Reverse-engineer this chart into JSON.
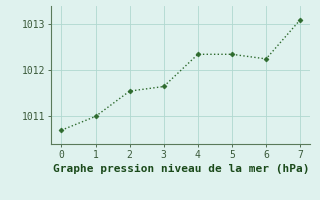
{
  "x": [
    0,
    1,
    2,
    3,
    4,
    5,
    6,
    7
  ],
  "y": [
    1010.7,
    1011.0,
    1011.55,
    1011.65,
    1012.35,
    1012.35,
    1012.25,
    1013.1
  ],
  "line_color": "#2d6a2d",
  "marker_color": "#2d6a2d",
  "bg_color": "#dff2ee",
  "grid_color": "#b0d8d0",
  "axis_color": "#5a7a5a",
  "tick_color": "#3a5a3a",
  "xlabel": "Graphe pression niveau de la mer (hPa)",
  "xlabel_color": "#1a4a1a",
  "xlim": [
    -0.3,
    7.3
  ],
  "ylim": [
    1010.4,
    1013.4
  ],
  "yticks": [
    1011,
    1012,
    1013
  ],
  "xticks": [
    0,
    1,
    2,
    3,
    4,
    5,
    6,
    7
  ],
  "tick_fontsize": 7,
  "xlabel_fontsize": 8
}
